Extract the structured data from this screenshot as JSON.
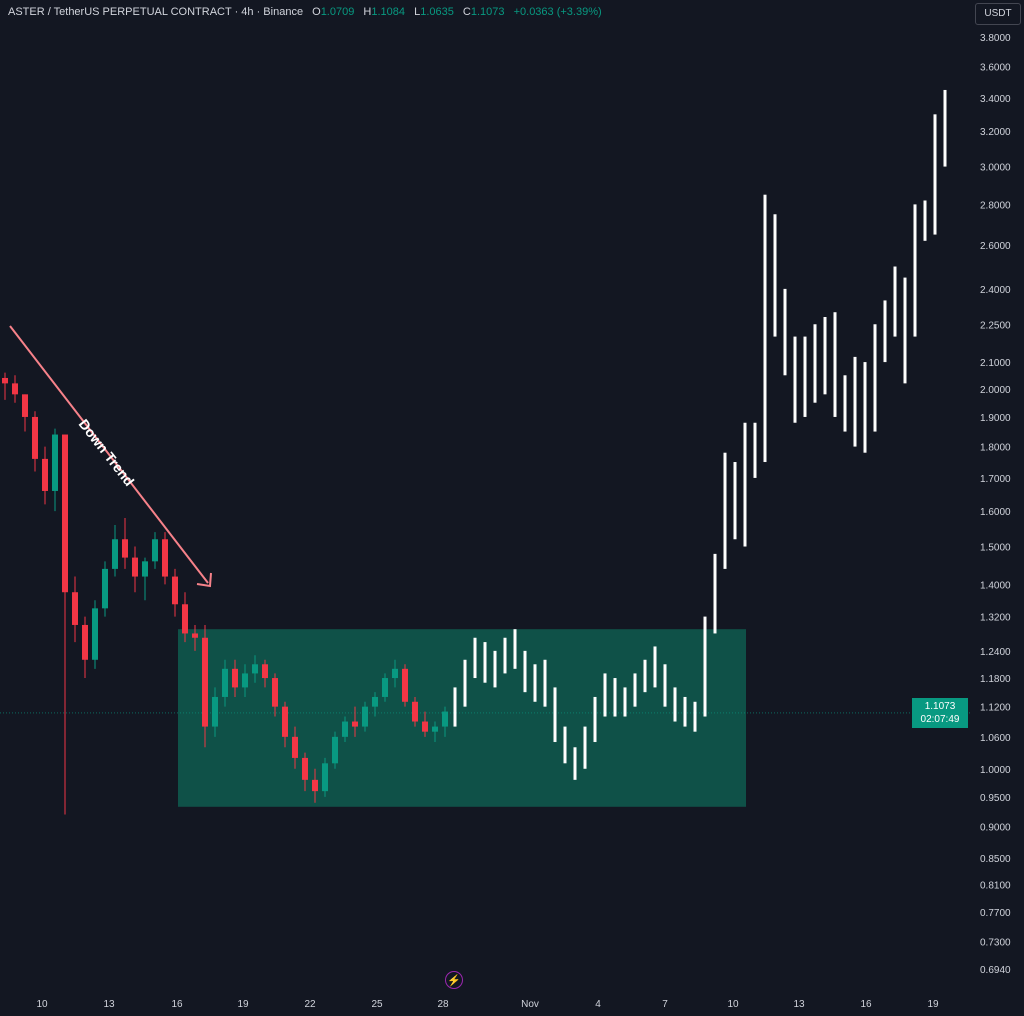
{
  "header": {
    "symbol": "ASTER / TetherUS PERPETUAL CONTRACT · 4h · Binance",
    "o_label": "O",
    "o": "1.0709",
    "h_label": "H",
    "h": "1.1084",
    "l_label": "L",
    "l": "1.0635",
    "c_label": "C",
    "c": "1.1073",
    "change": "+0.0363 (+3.39%)"
  },
  "axis_unit": "USDT",
  "last_price": {
    "value": "1.1073",
    "countdown": "02:07:49"
  },
  "colors": {
    "background": "#131722",
    "up": "#089981",
    "down": "#f23645",
    "bars": "#ffffff",
    "range_box": "#0f5148",
    "trend_arrow": "#f7828a"
  },
  "icons": {
    "replay": "lightning-bolt-icon"
  },
  "chart_data": {
    "type": "candlestick",
    "scale": "log",
    "ylim": [
      0.694,
      3.8
    ],
    "y_ticks": [
      "3.8000",
      "3.6000",
      "3.4000",
      "3.2000",
      "3.0000",
      "2.8000",
      "2.6000",
      "2.4000",
      "2.2500",
      "2.1000",
      "2.0000",
      "1.9000",
      "1.8000",
      "1.7000",
      "1.6000",
      "1.5000",
      "1.4000",
      "1.3200",
      "1.2400",
      "1.1800",
      "1.1200",
      "1.0600",
      "1.0000",
      "0.9500",
      "0.9000",
      "0.8500",
      "0.8100",
      "0.7700",
      "0.7300",
      "0.6940"
    ],
    "x_ticks": [
      "10",
      "13",
      "16",
      "19",
      "22",
      "25",
      "28",
      "Nov",
      "4",
      "7",
      "10",
      "13",
      "16",
      "19"
    ],
    "first_open": 2.04,
    "candles_hlc": [
      [
        2.06,
        1.96,
        2.02
      ],
      [
        2.05,
        1.95,
        1.98
      ],
      [
        1.98,
        1.85,
        1.9
      ],
      [
        1.92,
        1.72,
        1.76
      ],
      [
        1.8,
        1.62,
        1.66
      ],
      [
        1.86,
        1.6,
        1.84
      ],
      [
        1.84,
        0.92,
        1.38
      ],
      [
        1.42,
        1.26,
        1.3
      ],
      [
        1.32,
        1.18,
        1.22
      ],
      [
        1.36,
        1.2,
        1.34
      ],
      [
        1.46,
        1.32,
        1.44
      ],
      [
        1.56,
        1.42,
        1.52
      ],
      [
        1.58,
        1.44,
        1.47
      ],
      [
        1.5,
        1.38,
        1.42
      ],
      [
        1.47,
        1.36,
        1.46
      ],
      [
        1.54,
        1.44,
        1.52
      ],
      [
        1.54,
        1.4,
        1.42
      ],
      [
        1.44,
        1.32,
        1.35
      ],
      [
        1.38,
        1.26,
        1.28
      ],
      [
        1.3,
        1.24,
        1.27
      ],
      [
        1.3,
        1.04,
        1.08
      ],
      [
        1.16,
        1.06,
        1.14
      ],
      [
        1.22,
        1.12,
        1.2
      ],
      [
        1.22,
        1.14,
        1.16
      ],
      [
        1.21,
        1.14,
        1.19
      ],
      [
        1.23,
        1.17,
        1.21
      ],
      [
        1.22,
        1.16,
        1.18
      ],
      [
        1.19,
        1.1,
        1.12
      ],
      [
        1.13,
        1.04,
        1.06
      ],
      [
        1.08,
        1.0,
        1.02
      ],
      [
        1.03,
        0.96,
        0.98
      ],
      [
        1.0,
        0.94,
        0.96
      ],
      [
        1.02,
        0.95,
        1.01
      ],
      [
        1.07,
        1.0,
        1.06
      ],
      [
        1.1,
        1.05,
        1.09
      ],
      [
        1.12,
        1.06,
        1.08
      ],
      [
        1.13,
        1.07,
        1.12
      ],
      [
        1.15,
        1.1,
        1.14
      ],
      [
        1.19,
        1.13,
        1.18
      ],
      [
        1.22,
        1.16,
        1.2
      ],
      [
        1.21,
        1.12,
        1.13
      ],
      [
        1.14,
        1.08,
        1.09
      ],
      [
        1.11,
        1.06,
        1.07
      ],
      [
        1.09,
        1.05,
        1.08
      ],
      [
        1.12,
        1.06,
        1.11
      ]
    ],
    "bars_hlc": [
      [
        1.16,
        1.08,
        1.14
      ],
      [
        1.22,
        1.12,
        1.2
      ],
      [
        1.27,
        1.18,
        1.24
      ],
      [
        1.26,
        1.17,
        1.2
      ],
      [
        1.24,
        1.16,
        1.22
      ],
      [
        1.27,
        1.19,
        1.24
      ],
      [
        1.29,
        1.2,
        1.22
      ],
      [
        1.24,
        1.15,
        1.18
      ],
      [
        1.21,
        1.13,
        1.15
      ],
      [
        1.22,
        1.12,
        1.14
      ],
      [
        1.16,
        1.05,
        1.07
      ],
      [
        1.08,
        1.01,
        1.03
      ],
      [
        1.04,
        0.98,
        1.01
      ],
      [
        1.08,
        1.0,
        1.06
      ],
      [
        1.14,
        1.05,
        1.12
      ],
      [
        1.19,
        1.1,
        1.16
      ],
      [
        1.18,
        1.1,
        1.13
      ],
      [
        1.16,
        1.1,
        1.15
      ],
      [
        1.19,
        1.12,
        1.17
      ],
      [
        1.22,
        1.15,
        1.19
      ],
      [
        1.25,
        1.16,
        1.21
      ],
      [
        1.21,
        1.12,
        1.14
      ],
      [
        1.16,
        1.09,
        1.12
      ],
      [
        1.14,
        1.08,
        1.1
      ],
      [
        1.13,
        1.07,
        1.11
      ],
      [
        1.32,
        1.1,
        1.3
      ],
      [
        1.48,
        1.28,
        1.45
      ],
      [
        1.78,
        1.44,
        1.7
      ],
      [
        1.75,
        1.52,
        1.58
      ],
      [
        1.88,
        1.5,
        1.82
      ],
      [
        1.88,
        1.7,
        1.76
      ],
      [
        2.85,
        1.75,
        2.6
      ],
      [
        2.75,
        2.2,
        2.3
      ],
      [
        2.4,
        2.05,
        2.15
      ],
      [
        2.2,
        1.88,
        1.95
      ],
      [
        2.2,
        1.9,
        2.1
      ],
      [
        2.25,
        1.95,
        2.0
      ],
      [
        2.28,
        1.98,
        2.18
      ],
      [
        2.3,
        1.9,
        1.95
      ],
      [
        2.05,
        1.85,
        1.9
      ],
      [
        2.12,
        1.8,
        2.05
      ],
      [
        2.1,
        1.78,
        1.85
      ],
      [
        2.25,
        1.85,
        2.2
      ],
      [
        2.35,
        2.1,
        2.28
      ],
      [
        2.5,
        2.2,
        2.4
      ],
      [
        2.45,
        2.02,
        2.1
      ],
      [
        2.8,
        2.2,
        2.75
      ],
      [
        2.82,
        2.62,
        2.7
      ],
      [
        3.3,
        2.65,
        3.2
      ],
      [
        3.45,
        3.0,
        3.1
      ]
    ],
    "range_box": {
      "top": 1.29,
      "bottom": 0.933
    },
    "annotations": [
      {
        "text": "Down Trend",
        "type": "arrow"
      }
    ],
    "current_price_line": 1.1073
  }
}
